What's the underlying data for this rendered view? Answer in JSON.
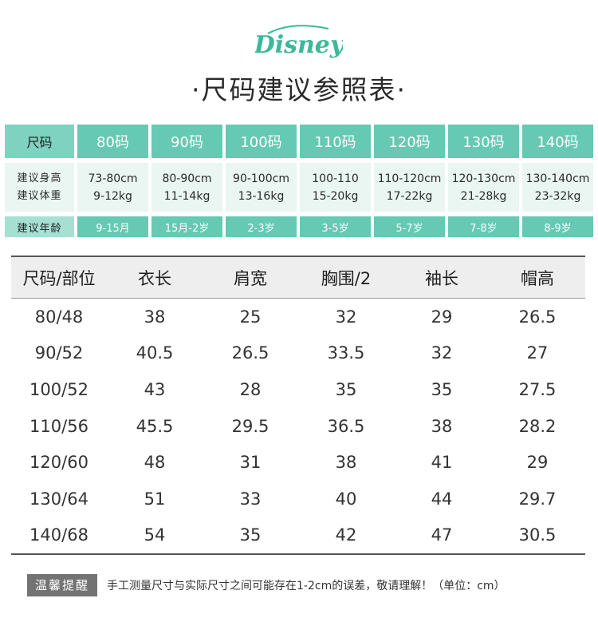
{
  "brand": {
    "logo_text": "Disney",
    "color": "#3cb89a"
  },
  "title": "·尺码建议参照表·",
  "recommend": {
    "header_label": "尺码",
    "sizes": [
      "80码",
      "90码",
      "100码",
      "110码",
      "120码",
      "130码",
      "140码"
    ],
    "height_label": "建议身高",
    "weight_label": "建议体重",
    "heights": [
      "73-80cm",
      "80-90cm",
      "90-100cm",
      "100-110",
      "110-120cm",
      "120-130cm",
      "130-140cm"
    ],
    "weights": [
      "9-12kg",
      "11-14kg",
      "13-16kg",
      "15-20kg",
      "17-22kg",
      "21-28kg",
      "23-32kg"
    ],
    "age_label": "建议年龄",
    "ages": [
      "9-15月",
      "15月-2岁",
      "2-3岁",
      "3-5岁",
      "5-7岁",
      "7-8岁",
      "8-9岁"
    ]
  },
  "measurements": {
    "headers": [
      "尺码/部位",
      "衣长",
      "肩宽",
      "胸围/2",
      "袖长",
      "帽高"
    ],
    "rows": [
      [
        "80/48",
        "38",
        "25",
        "32",
        "29",
        "26.5"
      ],
      [
        "90/52",
        "40.5",
        "26.5",
        "33.5",
        "32",
        "27"
      ],
      [
        "100/52",
        "43",
        "28",
        "35",
        "35",
        "27.5"
      ],
      [
        "110/56",
        "45.5",
        "29.5",
        "36.5",
        "38",
        "28.2"
      ],
      [
        "120/60",
        "48",
        "31",
        "38",
        "41",
        "29"
      ],
      [
        "130/64",
        "51",
        "33",
        "40",
        "44",
        "29.7"
      ],
      [
        "140/68",
        "54",
        "35",
        "42",
        "47",
        "30.5"
      ]
    ]
  },
  "note": {
    "badge": "温馨提醒",
    "text": "手工测量尺寸与实际尺寸之间可能存在1-2cm的误差，敬请理解！（单位：cm）"
  },
  "colors": {
    "teal": "#65c9b3",
    "teal_light": "#e9f6f2",
    "label_bg": "#7dd3bf"
  }
}
